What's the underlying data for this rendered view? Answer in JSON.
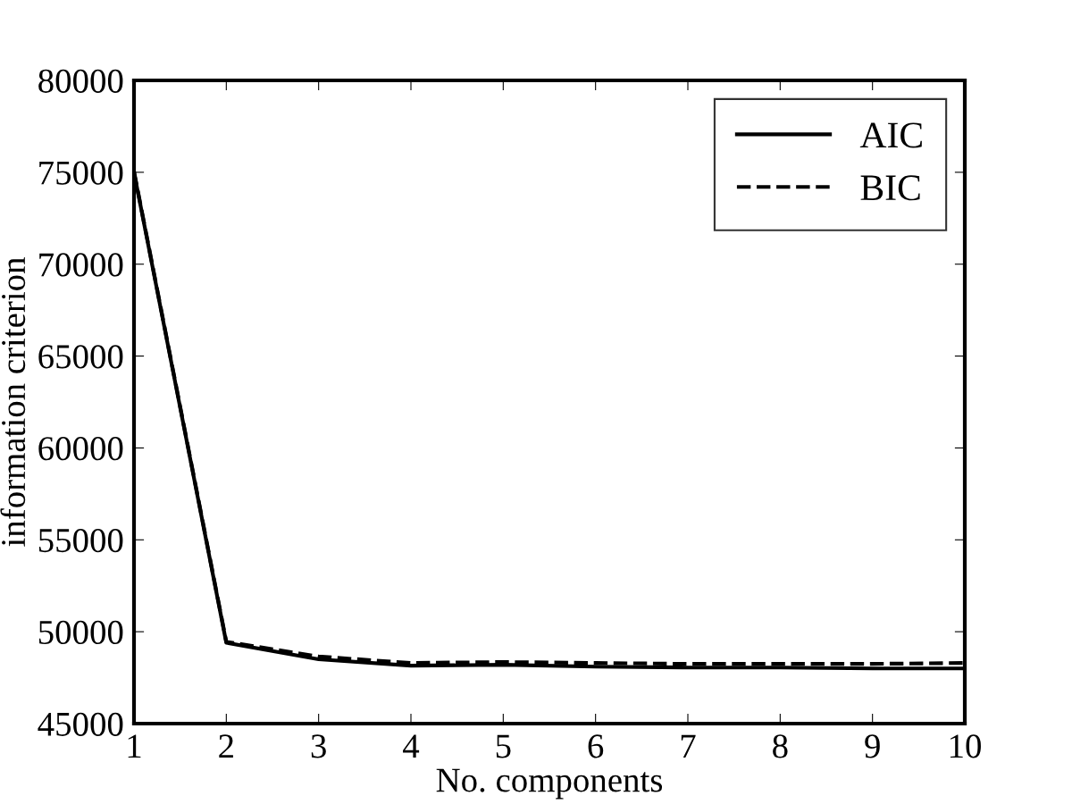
{
  "chart_data": {
    "type": "line",
    "xlabel": "No. components",
    "ylabel": "information criterion",
    "x": [
      1,
      2,
      3,
      4,
      5,
      6,
      7,
      8,
      9,
      10
    ],
    "series": [
      {
        "name": "AIC",
        "color": "#000000",
        "line_style": "solid",
        "values": [
          75000,
          49400,
          48500,
          48150,
          48200,
          48100,
          48050,
          48050,
          48000,
          48000
        ]
      },
      {
        "name": "BIC",
        "color": "#000000",
        "line_style": "dashed",
        "values": [
          75050,
          49450,
          48650,
          48300,
          48350,
          48300,
          48250,
          48250,
          48250,
          48300
        ]
      }
    ],
    "xlim": [
      1,
      10
    ],
    "xticks": [
      1,
      2,
      3,
      4,
      5,
      6,
      7,
      8,
      9,
      10
    ],
    "ylim": [
      45000,
      80000
    ],
    "yticks": [
      45000,
      50000,
      55000,
      60000,
      65000,
      70000,
      75000,
      80000
    ],
    "grid": false,
    "legend": "top right"
  }
}
